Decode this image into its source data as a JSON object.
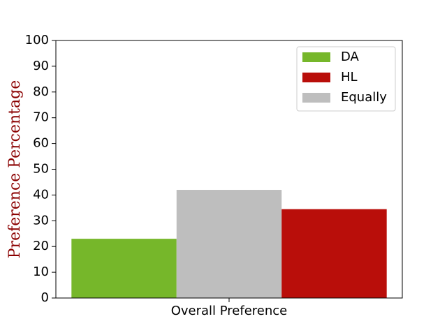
{
  "chart_data": {
    "type": "bar",
    "categories": [
      "Overall Preference"
    ],
    "series": [
      {
        "name": "DA",
        "values": [
          23
        ],
        "color": "#76b72a"
      },
      {
        "name": "Equally",
        "values": [
          42
        ],
        "color": "#bebebe"
      },
      {
        "name": "HL",
        "values": [
          34.5
        ],
        "color": "#b90e0a"
      }
    ],
    "legend_order": [
      "DA",
      "HL",
      "Equally"
    ],
    "legend_position": "top-right",
    "title": "",
    "xlabel": "",
    "ylabel": "Preference Percentage",
    "ylabel_color": "#8b0000",
    "ylim": [
      0,
      100
    ],
    "yticks": [
      "0",
      "10",
      "20",
      "30",
      "40",
      "50",
      "60",
      "70",
      "80",
      "90",
      "100"
    ],
    "grid": false
  }
}
